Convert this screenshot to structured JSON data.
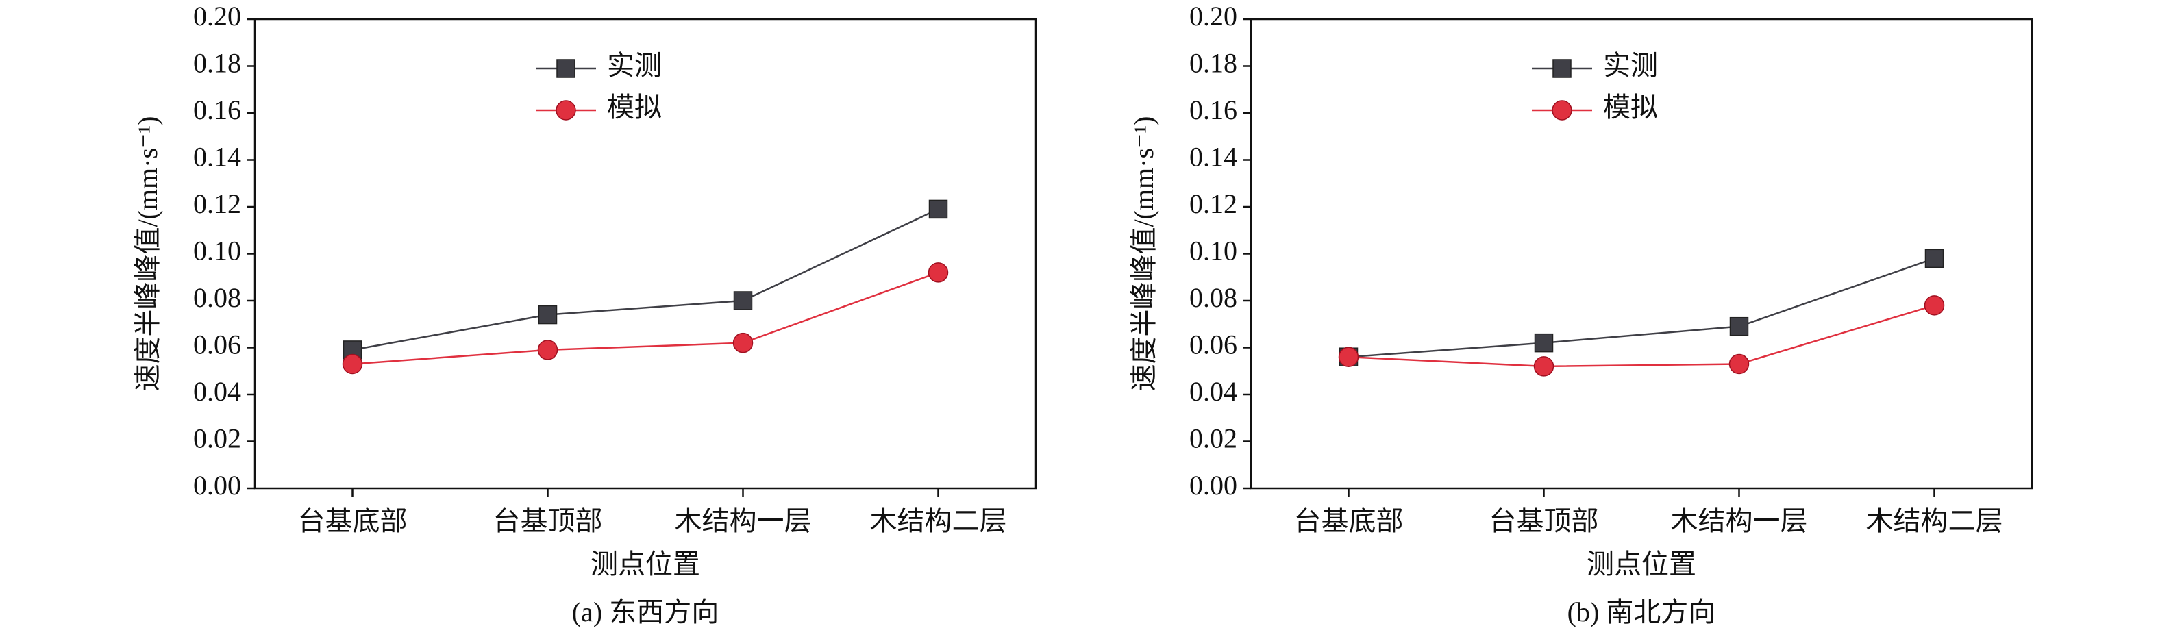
{
  "chart_data": [
    {
      "type": "line",
      "caption": "(a) 东西方向",
      "x_label": "测点位置",
      "y_label": "速度半峰峰值/(mm·s⁻¹)",
      "categories": [
        "台基底部",
        "台基顶部",
        "木结构一层",
        "木结构二层"
      ],
      "series": [
        {
          "name": "实测",
          "color": "#3f3f46",
          "marker": "square",
          "values": [
            0.059,
            0.074,
            0.08,
            0.119
          ]
        },
        {
          "name": "模拟",
          "color": "#e0303f",
          "marker": "circle",
          "values": [
            0.053,
            0.059,
            0.062,
            0.092
          ]
        }
      ],
      "ylim": [
        0,
        0.2
      ],
      "yticks": [
        {
          "value": 0,
          "label": "0.00"
        },
        0.02,
        0.04,
        0.06,
        0.08,
        {
          "value": 0.1,
          "label": "0.10"
        },
        0.12,
        0.14,
        0.16,
        0.18,
        {
          "value": 0.2,
          "label": "0.20"
        }
      ],
      "legend": "upper-left"
    },
    {
      "type": "line",
      "caption": "(b) 南北方向",
      "x_label": "测点位置",
      "y_label": "速度半峰峰值/(mm·s⁻¹)",
      "categories": [
        "台基底部",
        "台基顶部",
        "木结构一层",
        "木结构二层"
      ],
      "series": [
        {
          "name": "实测",
          "color": "#3f3f46",
          "marker": "square",
          "values": [
            0.056,
            0.062,
            0.069,
            0.098
          ]
        },
        {
          "name": "模拟",
          "color": "#e0303f",
          "marker": "circle",
          "values": [
            0.056,
            0.052,
            0.053,
            0.078
          ]
        }
      ],
      "ylim": [
        0,
        0.2
      ],
      "yticks": [
        {
          "value": 0,
          "label": "0.00"
        },
        0.02,
        0.04,
        0.06,
        0.08,
        {
          "value": 0.1,
          "label": "0.10"
        },
        0.12,
        0.14,
        0.16,
        0.18,
        {
          "value": 0.2,
          "label": "0.20"
        }
      ],
      "legend": "upper-left"
    }
  ]
}
